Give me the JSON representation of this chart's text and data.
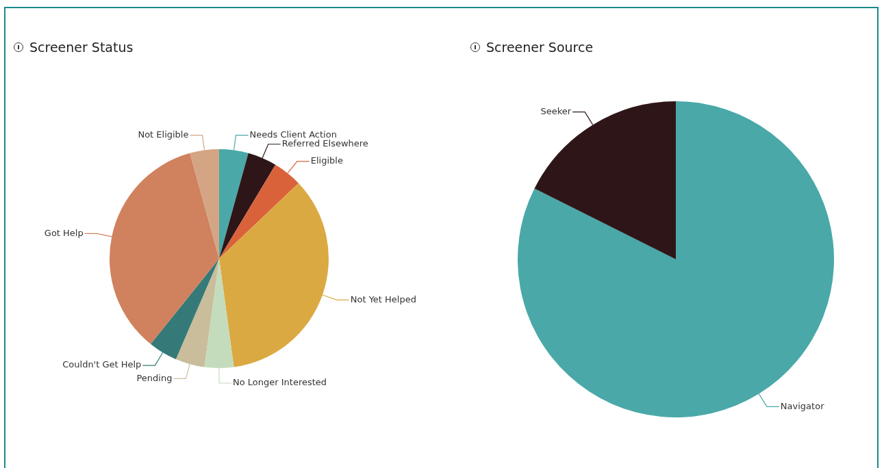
{
  "chart_data": [
    {
      "type": "pie",
      "title": "Screener Status",
      "categories": [
        "Needs Client Action",
        "Referred Elsewhere",
        "Eligible",
        "Not Yet Helped",
        "No Longer Interested",
        "Pending",
        "Couldn't Get Help",
        "Got Help",
        "Not Eligible"
      ],
      "values": [
        4.3,
        4.3,
        4.3,
        34.95,
        4.3,
        4.3,
        4.3,
        34.95,
        4.3
      ],
      "colors": [
        "#4aa8a8",
        "#2e1618",
        "#d9623b",
        "#dba942",
        "#c5dcbc",
        "#c9bd9b",
        "#357a78",
        "#d0815e",
        "#d3a584"
      ],
      "legend": false
    },
    {
      "type": "pie",
      "title": "Screener Source",
      "categories": [
        "Navigator",
        "Seeker"
      ],
      "values": [
        82.4,
        17.6
      ],
      "colors": [
        "#4aa8a8",
        "#2e1618"
      ],
      "legend": false
    }
  ]
}
